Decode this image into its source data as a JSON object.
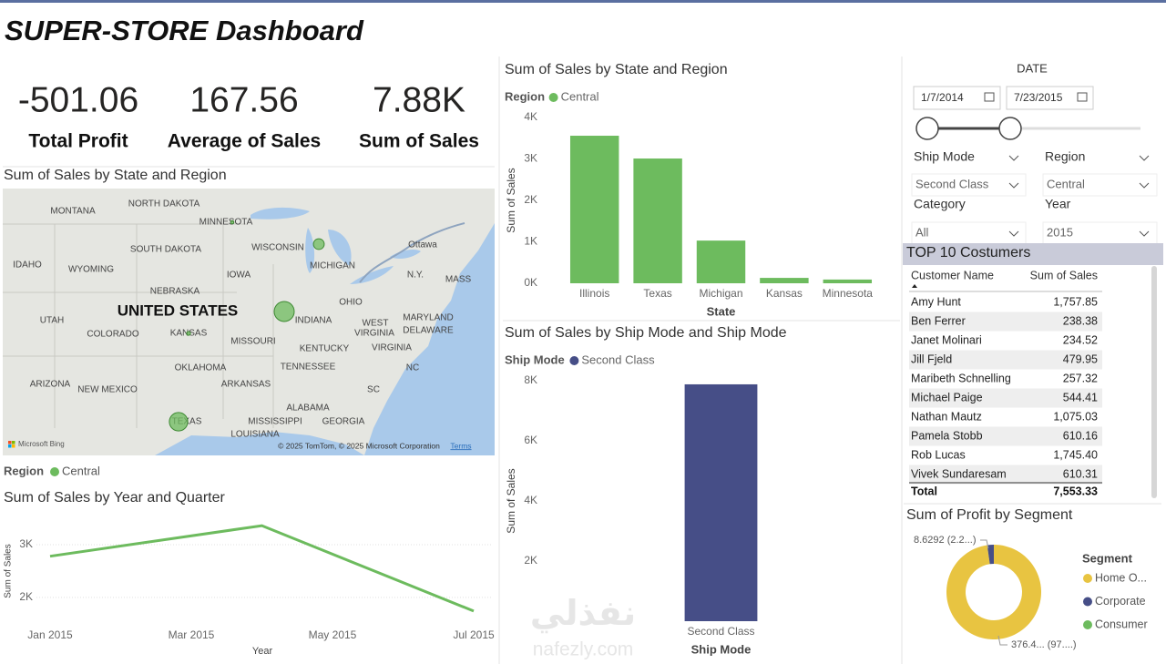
{
  "header": {
    "title": "SUPER-STORE Dashboard"
  },
  "kpis": [
    {
      "value": "-501.06",
      "label": "Total Profit"
    },
    {
      "value": "167.56",
      "label": "Average of Sales"
    },
    {
      "value": "7.88K",
      "label": "Sum of Sales"
    }
  ],
  "filters": {
    "date": {
      "label": "DATE",
      "start": "1/7/2014",
      "end": "7/23/2015"
    },
    "dropdowns": [
      {
        "label": "Ship Mode",
        "value": "Second Class"
      },
      {
        "label": "Region",
        "value": "Central"
      },
      {
        "label": "Category",
        "value": "All"
      },
      {
        "label": "Year",
        "value": "2015"
      }
    ]
  },
  "table": {
    "title": "TOP 10 Costumers",
    "columns": [
      "Customer Name",
      "Sum of Sales"
    ],
    "rows": [
      [
        "Amy Hunt",
        "1,757.85"
      ],
      [
        "Ben Ferrer",
        "238.38"
      ],
      [
        "Janet Molinari",
        "234.52"
      ],
      [
        "Jill Fjeld",
        "479.95"
      ],
      [
        "Maribeth Schnelling",
        "257.32"
      ],
      [
        "Michael Paige",
        "544.41"
      ],
      [
        "Nathan Mautz",
        "1,075.03"
      ],
      [
        "Pamela Stobb",
        "610.16"
      ],
      [
        "Rob Lucas",
        "1,745.40"
      ],
      [
        "Vivek Sundaresam",
        "610.31"
      ]
    ],
    "total": [
      "Total",
      "7,553.33"
    ]
  },
  "watermark": {
    "arabic": "نفذلي",
    "latin": "nafezly.com"
  },
  "chart_data": [
    {
      "type": "map",
      "title": "Sum of Sales by State and Region",
      "legend_title": "Region",
      "series": [
        {
          "name": "Central",
          "color": "#6dbb5e"
        }
      ],
      "country": "UNITED STATES",
      "labels": [
        "MONTANA",
        "NORTH DAKOTA",
        "MINNESOTA",
        "WISCONSIN",
        "SOUTH DAKOTA",
        "MICHIGAN",
        "IDAHO",
        "WYOMING",
        "IOWA",
        "NEBRASKA",
        "Ottawa",
        "N.Y.",
        "MASS",
        "OHIO",
        "INDIANA",
        "UTAH",
        "COLORADO",
        "KANSAS",
        "MISSOURI",
        "WEST",
        "VIRGINIA",
        "MARYLAND",
        "DELAWARE",
        "KENTUCKY",
        "VIRGINIA",
        "OKLAHOMA",
        "TENNESSEE",
        "ARIZONA",
        "NEW MEXICO",
        "ARKANSAS",
        "NC",
        "SC",
        "ALABAMA",
        "GEORGIA",
        "MISSISSIPPI",
        "TEXAS",
        "LOUISIANA"
      ],
      "brand": "Microsoft Bing",
      "attribution": "© 2025 TomTom, © 2025 Microsoft Corporation",
      "terms": "Terms"
    },
    {
      "type": "bar",
      "title": "Sum of Sales by State and Region",
      "legend_title": "Region",
      "xlabel": "State",
      "ylabel": "Sum of Sales",
      "categories": [
        "Illinois",
        "Texas",
        "Michigan",
        "Kansas",
        "Minnesota"
      ],
      "series": [
        {
          "name": "Central",
          "color": "#6dbb5e",
          "values": [
            3560,
            3010,
            1030,
            130,
            90
          ]
        }
      ],
      "ylim": [
        0,
        4000
      ],
      "yticks": [
        {
          "value": 0,
          "label": "0K"
        },
        {
          "value": 1000,
          "label": "1K"
        },
        {
          "value": 2000,
          "label": "2K"
        },
        {
          "value": 3000,
          "label": "3K"
        },
        {
          "value": 4000,
          "label": "4K"
        }
      ]
    },
    {
      "type": "line",
      "title": "Sum of Sales by Year and Quarter",
      "xlabel": "Year",
      "ylabel": "Sum of Sales",
      "x": [
        "2015-01",
        "2015-04",
        "2015-07"
      ],
      "values": [
        2780,
        3360,
        1740
      ],
      "color": "#6dbb5e",
      "xlim": [
        "2015-01",
        "2015-07"
      ],
      "xticks": [
        {
          "value": "2015-01",
          "label": "Jan 2015"
        },
        {
          "value": "2015-03",
          "label": "Mar 2015"
        },
        {
          "value": "2015-05",
          "label": "May 2015"
        },
        {
          "value": "2015-07",
          "label": "Jul 2015"
        }
      ],
      "ylim": [
        1600,
        3500
      ],
      "yticks": [
        {
          "value": 2000,
          "label": "2K"
        },
        {
          "value": 3000,
          "label": "3K"
        }
      ],
      "grid": true
    },
    {
      "type": "bar",
      "title": "Sum of Sales by Ship Mode and Ship Mode",
      "legend_title": "Ship Mode",
      "xlabel": "Ship Mode",
      "ylabel": "Sum of Sales",
      "categories": [
        "Second Class"
      ],
      "series": [
        {
          "name": "Second Class",
          "color": "#464e87",
          "values": [
            7880
          ]
        }
      ],
      "ylim": [
        0,
        8000
      ],
      "yticks": [
        {
          "value": 2000,
          "label": "2K"
        },
        {
          "value": 4000,
          "label": "4K"
        },
        {
          "value": 6000,
          "label": "6K"
        },
        {
          "value": 8000,
          "label": "8K"
        }
      ]
    },
    {
      "type": "donut",
      "title": "Sum of Profit by Segment",
      "legend_title": "Segment",
      "categories": [
        "Home O...",
        "Corporate",
        "Consumer"
      ],
      "colors": [
        "#e8c441",
        "#464e87",
        "#6dbb5e"
      ],
      "values": [
        376.4,
        8.6292,
        null
      ],
      "value_labels": [
        "376.4... (97....)",
        "8.6292 (2.2...)",
        null
      ]
    }
  ]
}
